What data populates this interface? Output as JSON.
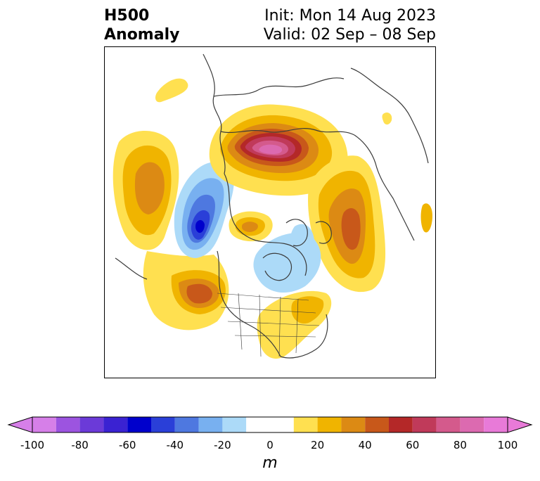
{
  "title": {
    "variable": "H500",
    "field": "Anomaly",
    "init": "Init: Mon 14 Aug 2023",
    "valid": "Valid: 02 Sep – 08 Sep"
  },
  "map": {
    "projection": "north-polar-stereographic",
    "features": [
      "coastlines",
      "country-borders",
      "us-state-borders"
    ],
    "anomaly_centers": [
      {
        "region": "Eurasian Arctic / Kara Sea",
        "sign": "positive",
        "peak_m": 90
      },
      {
        "region": "North Atlantic (Iceland–Scandinavia side)",
        "sign": "positive",
        "peak_m": 40
      },
      {
        "region": "Western Europe",
        "sign": "positive",
        "peak_m": 40
      },
      {
        "region": "Western Siberia",
        "sign": "positive",
        "peak_m": 30
      },
      {
        "region": "Central Arctic",
        "sign": "positive",
        "peak_m": 40
      },
      {
        "region": "Eastern Siberia / Sea of Okhotsk",
        "sign": "negative",
        "peak_m": -70
      },
      {
        "region": "North Pacific / Gulf of Alaska",
        "sign": "positive",
        "peak_m": 40
      },
      {
        "region": "Northeastern Canada / Greenland",
        "sign": "negative",
        "peak_m": -20
      },
      {
        "region": "Eastern United States",
        "sign": "positive",
        "peak_m": 20
      }
    ]
  },
  "colorbar": {
    "unit": "m",
    "extend": "both",
    "ticks": [
      "-100",
      "-80",
      "-60",
      "-40",
      "-20",
      "0",
      "20",
      "40",
      "60",
      "80",
      "100"
    ],
    "levels": [
      -100,
      -90,
      -80,
      -70,
      -60,
      -50,
      -40,
      -30,
      -20,
      -10,
      10,
      20,
      30,
      40,
      50,
      60,
      70,
      80,
      90,
      100
    ],
    "colors": {
      "under": "#d67fe8",
      "bins": [
        "#d67fe8",
        "#9c54e0",
        "#6b3ad8",
        "#3a22d2",
        "#0000cc",
        "#2a3fd8",
        "#4e78e0",
        "#78b0f0",
        "#acdaf8",
        "#ffffff",
        "#ffe050",
        "#f0b400",
        "#dc8a14",
        "#c8581a",
        "#b42828",
        "#c03a5a",
        "#d45a8c",
        "#dc6ab0",
        "#e87ad8"
      ],
      "over": "#e87ad8"
    }
  }
}
